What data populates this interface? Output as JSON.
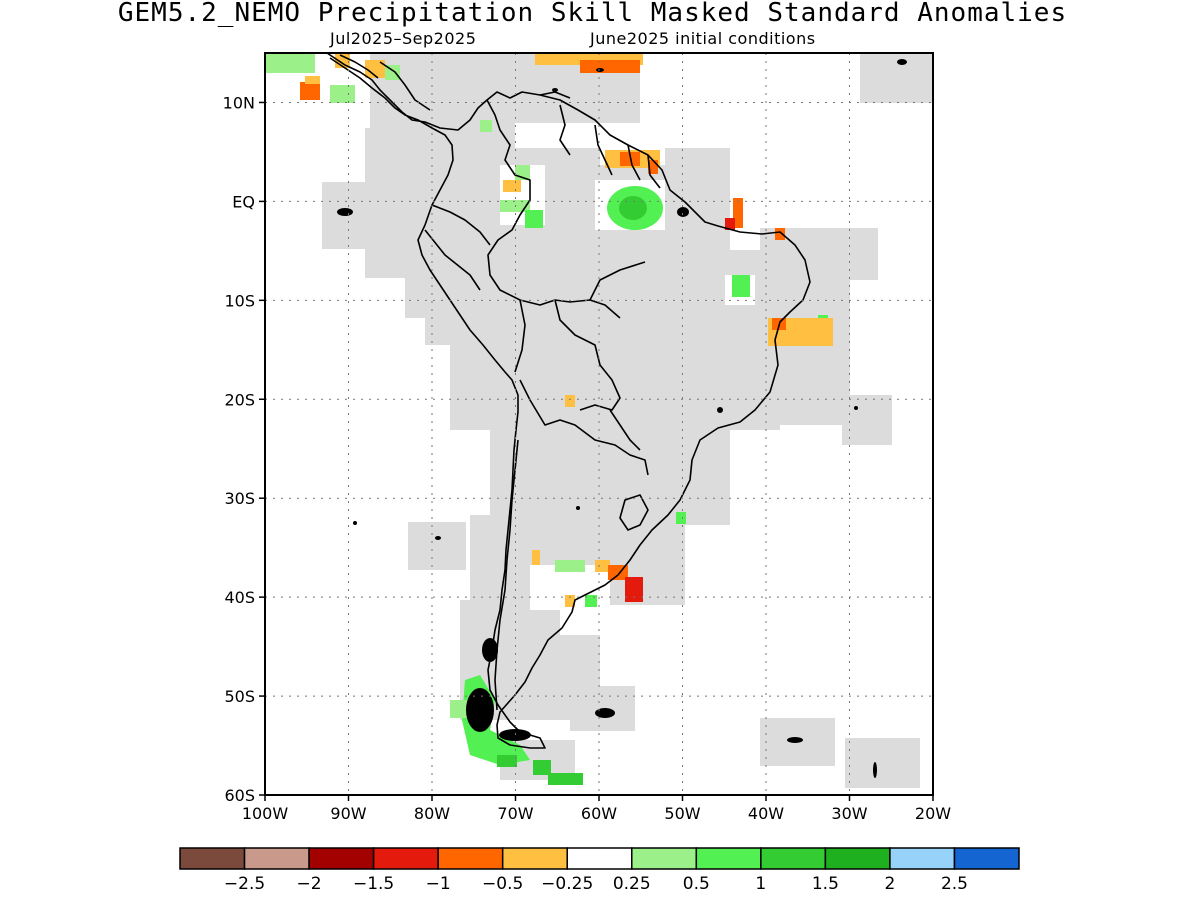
{
  "title": "GEM5.2_NEMO Precipitation Skill Masked Standard Anomalies",
  "subtitle_period": "Jul2025–Sep2025",
  "subtitle_init": "June2025 initial conditions",
  "chart_data": {
    "type": "map",
    "lon_range": [
      -100,
      -20
    ],
    "lat_range": [
      -60,
      15
    ],
    "x_ticks": [
      "100W",
      "90W",
      "80W",
      "70W",
      "60W",
      "50W",
      "40W",
      "30W",
      "20W"
    ],
    "y_ticks": [
      "10N",
      "EQ",
      "10S",
      "20S",
      "30S",
      "40S",
      "50S",
      "60S"
    ],
    "grid": true,
    "colorbar": {
      "colors": [
        "#7b4a3c",
        "#c99a8c",
        "#a30000",
        "#e31a0c",
        "#ff6600",
        "#ffbf40",
        "#ffffff",
        "#9bf08a",
        "#52f052",
        "#33cc33",
        "#1eb01e",
        "#96d2fa",
        "#1464d2"
      ],
      "labels": [
        "−2.5",
        "−2",
        "−1.5",
        "−1",
        "−0.5",
        "−0.25",
        "0.25",
        "0.5",
        "1",
        "1.5",
        "2",
        "2.5"
      ]
    },
    "legend_placement": "bottom",
    "mask_color": "#dcdcdc"
  }
}
